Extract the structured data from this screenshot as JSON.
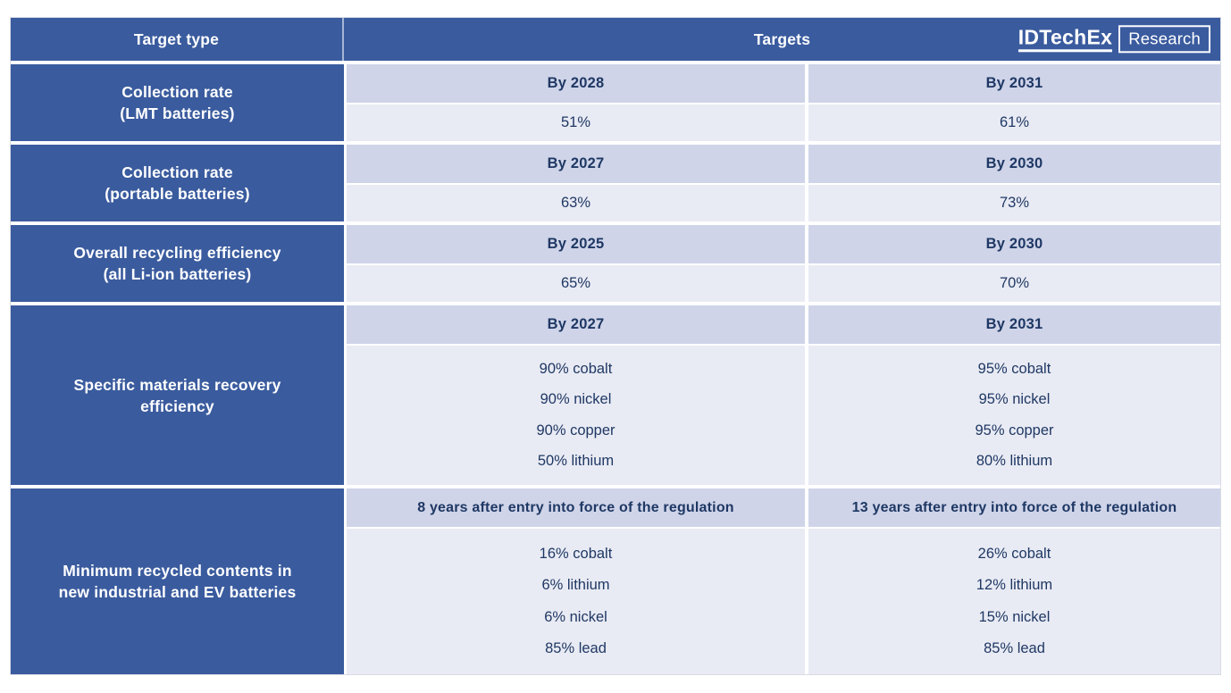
{
  "header": {
    "target_type_label": "Target type",
    "targets_label": "Targets",
    "logo": {
      "brand": "IDTechEx",
      "suffix": "Research"
    }
  },
  "colors": {
    "header_blue": "#3a5b9e",
    "year_band_lavender": "#cfd4e9",
    "value_cell_light": "#e9ebf4",
    "navy_text": "#1f3864",
    "white": "#ffffff"
  },
  "rows": [
    {
      "label": "Collection rate\n(LMT batteries)",
      "col1": {
        "header": "By 2028",
        "values": [
          "51%"
        ]
      },
      "col2": {
        "header": "By 2031",
        "values": [
          "61%"
        ]
      }
    },
    {
      "label": "Collection rate\n(portable batteries)",
      "col1": {
        "header": "By 2027",
        "values": [
          "63%"
        ]
      },
      "col2": {
        "header": "By 2030",
        "values": [
          "73%"
        ]
      }
    },
    {
      "label": "Overall recycling efficiency\n(all Li-ion batteries)",
      "col1": {
        "header": "By 2025",
        "values": [
          "65%"
        ]
      },
      "col2": {
        "header": "By 2030",
        "values": [
          "70%"
        ]
      }
    },
    {
      "label": "Specific materials recovery\nefficiency",
      "col1": {
        "header": "By 2027",
        "values": [
          "90% cobalt",
          "90% nickel",
          "90% copper",
          "50% lithium"
        ]
      },
      "col2": {
        "header": "By 2031",
        "values": [
          "95% cobalt",
          "95% nickel",
          "95% copper",
          "80% lithium"
        ]
      }
    },
    {
      "label": "Minimum recycled contents in\nnew industrial and EV batteries",
      "col1": {
        "header": "8 years after entry into force of the regulation",
        "values": [
          "16% cobalt",
          "6% lithium",
          "6% nickel",
          "85% lead"
        ]
      },
      "col2": {
        "header": "13 years after entry into force of the regulation",
        "values": [
          "26% cobalt",
          "12% lithium",
          "15% nickel",
          "85% lead"
        ]
      }
    }
  ]
}
